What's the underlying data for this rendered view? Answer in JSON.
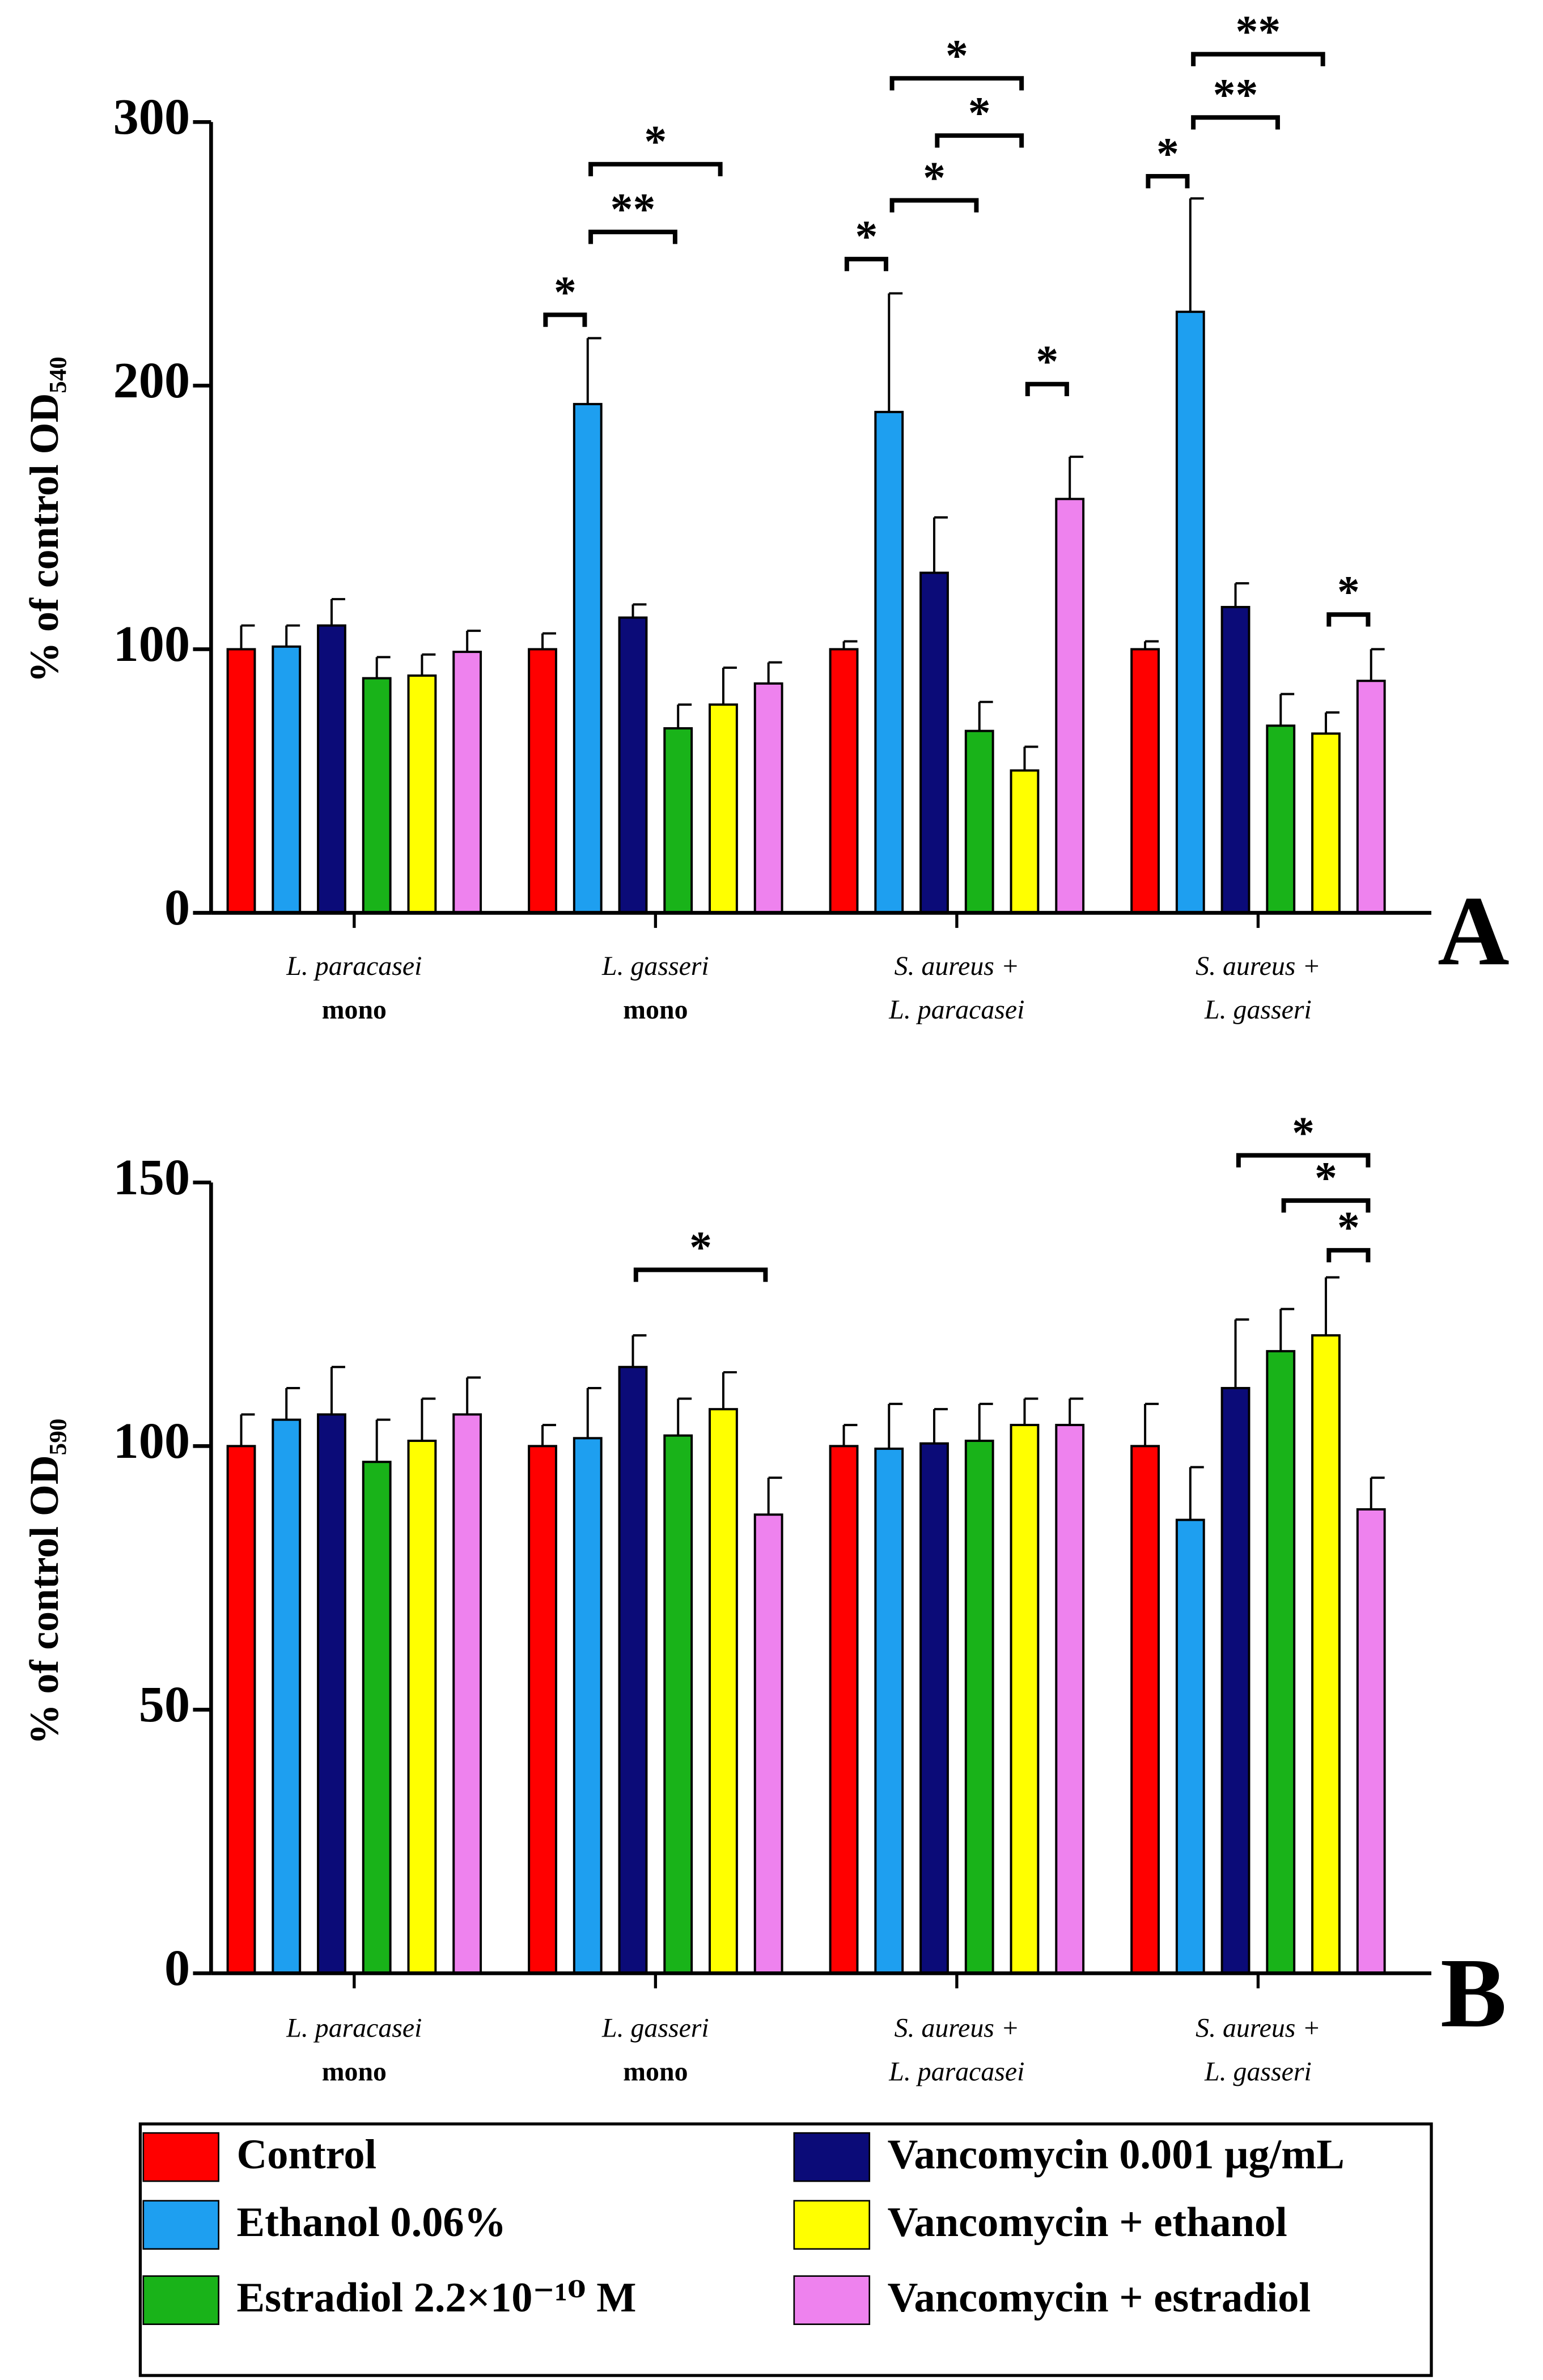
{
  "chart_data": [
    {
      "type": "bar",
      "ylabel": "% of control OD₅₄₀",
      "panel_label": "A",
      "categories": [
        [
          "L. paracasei",
          "mono"
        ],
        [
          "L. gasseri",
          "mono"
        ],
        [
          "S. aureus +",
          "L. paracasei"
        ],
        [
          "S. aureus +",
          "L. gasseri"
        ]
      ],
      "ylim": [
        0,
        300
      ],
      "yticks": [
        0,
        100,
        200,
        300
      ],
      "series": [
        {
          "color": "#ff0000",
          "values": [
            100,
            100,
            100,
            100
          ],
          "errors": [
            9,
            6,
            3,
            3
          ]
        },
        {
          "color": "#1e9ff0",
          "values": [
            101,
            193,
            190,
            228
          ],
          "errors": [
            8,
            25,
            45,
            43
          ]
        },
        {
          "color": "#0b0b78",
          "values": [
            109,
            112,
            129,
            116
          ],
          "errors": [
            10,
            5,
            21,
            9
          ]
        },
        {
          "color": "#19b319",
          "values": [
            89,
            70,
            69,
            71
          ],
          "errors": [
            8,
            9,
            11,
            12
          ]
        },
        {
          "color": "#ffff00",
          "values": [
            90,
            79,
            54,
            68
          ],
          "errors": [
            8,
            14,
            9,
            8
          ]
        },
        {
          "color": "#ee82ee",
          "values": [
            99,
            87,
            157,
            88
          ],
          "errors": [
            8,
            8,
            16,
            12
          ]
        }
      ],
      "annotations": [
        "*",
        "**",
        "*",
        "*",
        "*",
        "*",
        "*",
        "*",
        "*",
        "**",
        "**",
        "*"
      ]
    },
    {
      "type": "bar",
      "ylabel": "% of control OD₅₉₀",
      "panel_label": "B",
      "categories": [
        [
          "L. paracasei",
          "mono"
        ],
        [
          "L. gasseri",
          "mono"
        ],
        [
          "S. aureus +",
          "L. paracasei"
        ],
        [
          "S. aureus +",
          "L. gasseri"
        ]
      ],
      "ylim": [
        0,
        150
      ],
      "yticks": [
        0,
        50,
        100,
        150
      ],
      "series": [
        {
          "name": "Control",
          "color": "#ff0000",
          "values": [
            100,
            100,
            100,
            100
          ],
          "errors": [
            6,
            4,
            4,
            8
          ]
        },
        {
          "name": "Ethanol 0.06%",
          "color": "#1e9ff0",
          "values": [
            105,
            101.5,
            99.5,
            86
          ],
          "errors": [
            6,
            9.5,
            8.5,
            10
          ]
        },
        {
          "name": "Vancomycin 0.001 μg/mL",
          "color": "#0b0b78",
          "values": [
            106,
            115,
            100.5,
            111
          ],
          "errors": [
            9,
            6,
            6.5,
            13
          ]
        },
        {
          "name": "Estradiol 2.2×10⁻¹⁰ M",
          "color": "#19b319",
          "values": [
            97,
            102,
            101,
            118
          ],
          "errors": [
            8,
            7,
            7,
            8
          ]
        },
        {
          "name": "Vancomycin + ethanol",
          "color": "#ffff00",
          "values": [
            101,
            107,
            104,
            121
          ],
          "errors": [
            8,
            7,
            5,
            11
          ]
        },
        {
          "name": "Vancomycin + estradiol",
          "color": "#ee82ee",
          "values": [
            106,
            87,
            104,
            88
          ],
          "errors": [
            7,
            7,
            5,
            6
          ]
        }
      ],
      "annotations": [
        "*",
        "*",
        "*",
        "*"
      ]
    }
  ]
}
